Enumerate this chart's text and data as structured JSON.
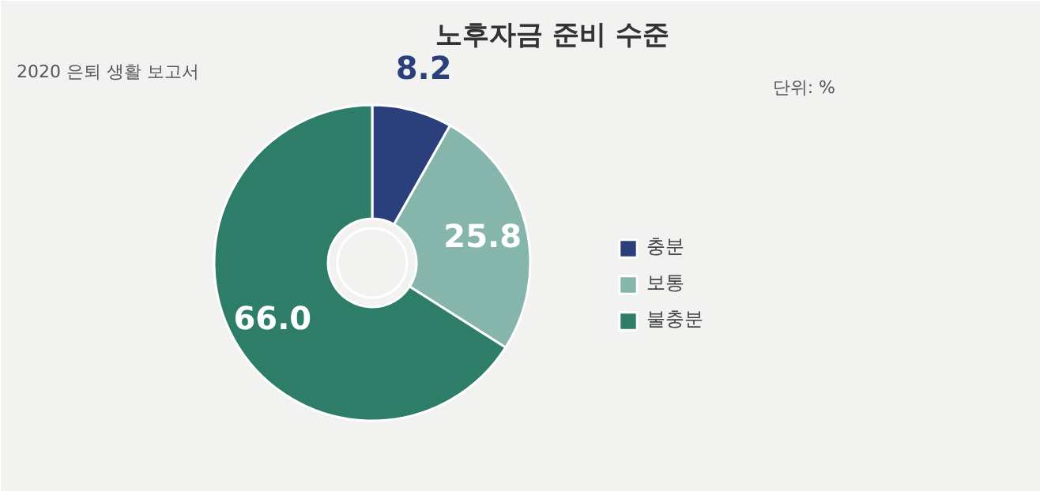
{
  "chart_data": {
    "type": "donut",
    "title": "노후자금 준비 수준",
    "categories": [
      "충분",
      "보통",
      "불충분"
    ],
    "values": [
      8.2,
      25.8,
      66.0
    ],
    "colors": [
      "#2b3f7c",
      "#86b5ab",
      "#2e7d68"
    ],
    "value_labels": [
      "8.2",
      "25.8",
      "66.0"
    ],
    "legend": "right",
    "annotations": [
      "단위: %",
      "2020 은퇴 생활 보고서"
    ]
  }
}
